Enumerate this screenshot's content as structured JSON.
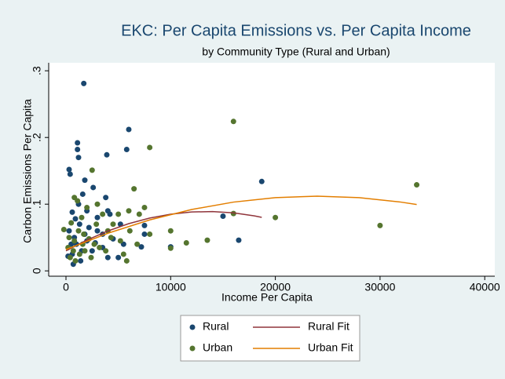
{
  "chart_data": {
    "type": "scatter",
    "title": "EKC: Per Capita Emissions vs. Per Capita Income",
    "subtitle": "by Community Type (Rural and Urban)",
    "xlabel": "Income Per Capita",
    "ylabel": "Carbon Emissions Per Capita",
    "xlim": [
      -1650,
      40960
    ],
    "ylim": [
      -0.008,
      0.312
    ],
    "xticks": [
      0,
      10000,
      20000,
      30000,
      40000
    ],
    "yticks": [
      0,
      {
        "value": 0.1,
        "label": ".1"
      },
      {
        "value": 0.2,
        "label": ".2"
      },
      {
        "value": 0.3,
        "label": ".3"
      }
    ],
    "series": [
      {
        "name": "Rural",
        "type": "scatter",
        "color": "#1a476f",
        "x": [
          1700,
          6000,
          1100,
          1100,
          5800,
          1200,
          3900,
          300,
          400,
          1800,
          1600,
          2600,
          3800,
          1200,
          18700,
          15000,
          16500,
          7500,
          7500,
          7200,
          10000,
          4000,
          2000,
          600,
          900,
          1300,
          2200,
          3000,
          3500,
          4500,
          5500,
          800,
          1000,
          1500,
          600,
          200,
          2500,
          3500,
          4000,
          5000,
          1400,
          700,
          2000,
          3000,
          4200,
          5200,
          300,
          500,
          1800,
          2800
        ],
        "values": [
          0.281,
          0.212,
          0.192,
          0.182,
          0.182,
          0.17,
          0.174,
          0.152,
          0.145,
          0.136,
          0.115,
          0.125,
          0.11,
          0.1,
          0.134,
          0.082,
          0.046,
          0.068,
          0.055,
          0.036,
          0.036,
          0.09,
          0.09,
          0.088,
          0.078,
          0.07,
          0.065,
          0.06,
          0.055,
          0.048,
          0.04,
          0.05,
          0.04,
          0.03,
          0.025,
          0.022,
          0.03,
          0.035,
          0.02,
          0.02,
          0.015,
          0.01,
          0.045,
          0.08,
          0.085,
          0.07,
          0.06,
          0.04,
          0.055,
          0.042
        ]
      },
      {
        "name": "Urban",
        "type": "scatter",
        "color": "#55752f",
        "x": [
          16000,
          8000,
          2500,
          6500,
          800,
          1100,
          33500,
          30000,
          20000,
          16000,
          13500,
          11500,
          10000,
          10000,
          8000,
          7500,
          7000,
          6000,
          5000,
          4500,
          3000,
          2000,
          3500,
          1500,
          500,
          -200,
          300,
          800,
          1200,
          1700,
          2200,
          2700,
          3200,
          3800,
          4300,
          5500,
          5800,
          6100,
          400,
          900,
          1300,
          1800,
          2400,
          200,
          700,
          1600,
          2900,
          4000,
          5200,
          6800
        ],
        "values": [
          0.224,
          0.185,
          0.151,
          0.123,
          0.11,
          0.105,
          0.129,
          0.068,
          0.08,
          0.086,
          0.046,
          0.042,
          0.06,
          0.034,
          0.055,
          0.095,
          0.085,
          0.09,
          0.085,
          0.07,
          0.1,
          0.095,
          0.085,
          0.08,
          0.072,
          0.062,
          0.05,
          0.045,
          0.06,
          0.055,
          0.048,
          0.04,
          0.035,
          0.03,
          0.05,
          0.025,
          0.015,
          0.06,
          0.02,
          0.015,
          0.025,
          0.03,
          0.02,
          0.035,
          0.03,
          0.04,
          0.07,
          0.06,
          0.045,
          0.04
        ]
      },
      {
        "name": "Rural Fit",
        "type": "line",
        "color": "#90353b",
        "x": [
          0,
          2000,
          4000,
          6000,
          8000,
          10000,
          12000,
          14000,
          16000,
          18000,
          18700
        ],
        "values": [
          0.03,
          0.0462,
          0.0598,
          0.0708,
          0.0792,
          0.085,
          0.0883,
          0.0889,
          0.087,
          0.0824,
          0.0802
        ]
      },
      {
        "name": "Urban Fit",
        "type": "line",
        "color": "#e37e00",
        "x": [
          0,
          4000,
          8000,
          12000,
          16000,
          20000,
          24000,
          28000,
          32000,
          33500
        ],
        "values": [
          0.032,
          0.0564,
          0.0764,
          0.092,
          0.1031,
          0.1098,
          0.112,
          0.1098,
          0.1031,
          0.0995
        ]
      }
    ]
  }
}
